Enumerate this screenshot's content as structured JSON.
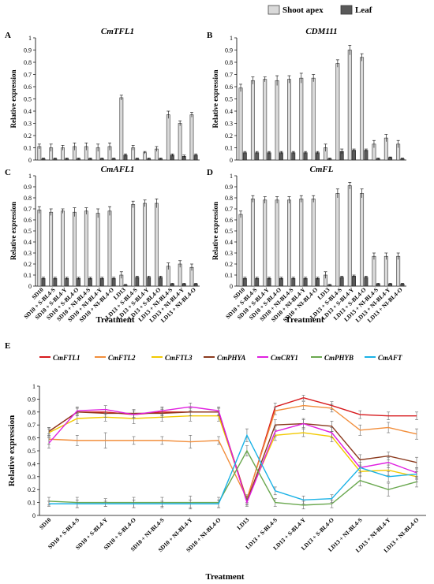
{
  "legend": {
    "shoot_apex": "Shoot apex",
    "leaf": "Leaf"
  },
  "treatments": [
    "SD10",
    "SD10 + S-BL4-S",
    "SD10 + S-BL4-Y",
    "SD10 + S-BL4-O",
    "SD10 + NI-BL4-S",
    "SD10 + NI-BL4-Y",
    "SD10 + NI-BL4-O",
    "LD13",
    "LD13 + S-BL4-S",
    "LD13 + S-BL4-Y",
    "LD13 + S-BL4-O",
    "LD13 + NI-BL4-S",
    "LD13 + NI-BL4-Y",
    "LD13 + NI-BL4-O"
  ],
  "bar_axis": {
    "xlabel": "Treatment",
    "ylabel": "Relative expression",
    "ylim": [
      0,
      1
    ],
    "ticks": [
      "0",
      "0.1",
      "0.2",
      "0.3",
      "0.4",
      "0.5",
      "0.6",
      "0.7",
      "0.8",
      "0.9",
      "1"
    ]
  },
  "colors": {
    "shoot_apex": "#d9d9d9",
    "leaf": "#595959"
  },
  "panels": [
    {
      "letter": "A",
      "title": "CmTFL1",
      "shoot": [
        0.11,
        0.1,
        0.1,
        0.11,
        0.11,
        0.1,
        0.11,
        0.51,
        0.1,
        0.06,
        0.09,
        0.37,
        0.3,
        0.37
      ],
      "shoot_err": [
        0.02,
        0.03,
        0.02,
        0.03,
        0.03,
        0.03,
        0.03,
        0.02,
        0.02,
        0.01,
        0.02,
        0.03,
        0.02,
        0.02
      ],
      "leaf": [
        0.01,
        0.01,
        0.01,
        0.01,
        0.01,
        0.01,
        0.01,
        0.04,
        0.01,
        0.01,
        0.01,
        0.04,
        0.03,
        0.04
      ],
      "leaf_err": [
        0.005,
        0.005,
        0.005,
        0.005,
        0.005,
        0.005,
        0.005,
        0.01,
        0.005,
        0.005,
        0.005,
        0.01,
        0.01,
        0.01
      ]
    },
    {
      "letter": "B",
      "title": "CDM111",
      "shoot": [
        0.59,
        0.65,
        0.66,
        0.65,
        0.66,
        0.67,
        0.67,
        0.1,
        0.79,
        0.9,
        0.84,
        0.13,
        0.18,
        0.13
      ],
      "shoot_err": [
        0.03,
        0.03,
        0.02,
        0.04,
        0.03,
        0.04,
        0.03,
        0.03,
        0.03,
        0.04,
        0.03,
        0.03,
        0.03,
        0.03
      ],
      "leaf": [
        0.06,
        0.06,
        0.06,
        0.06,
        0.06,
        0.06,
        0.06,
        0.01,
        0.07,
        0.08,
        0.08,
        0.01,
        0.02,
        0.01
      ],
      "leaf_err": [
        0.01,
        0.01,
        0.01,
        0.01,
        0.01,
        0.01,
        0.01,
        0.005,
        0.02,
        0.01,
        0.01,
        0.005,
        0.005,
        0.005
      ]
    },
    {
      "letter": "C",
      "title": "CmAFL1",
      "shoot": [
        0.69,
        0.67,
        0.68,
        0.67,
        0.68,
        0.66,
        0.68,
        0.1,
        0.74,
        0.75,
        0.75,
        0.18,
        0.2,
        0.17
      ],
      "shoot_err": [
        0.03,
        0.03,
        0.02,
        0.04,
        0.03,
        0.04,
        0.04,
        0.03,
        0.03,
        0.03,
        0.04,
        0.03,
        0.03,
        0.03
      ],
      "leaf": [
        0.07,
        0.07,
        0.07,
        0.07,
        0.07,
        0.07,
        0.07,
        0.01,
        0.08,
        0.08,
        0.08,
        0.02,
        0.02,
        0.02
      ],
      "leaf_err": [
        0.01,
        0.01,
        0.01,
        0.01,
        0.01,
        0.01,
        0.01,
        0.005,
        0.01,
        0.01,
        0.01,
        0.005,
        0.005,
        0.005
      ]
    },
    {
      "letter": "D",
      "title": "CmFL",
      "shoot": [
        0.65,
        0.79,
        0.78,
        0.78,
        0.78,
        0.79,
        0.79,
        0.1,
        0.84,
        0.91,
        0.84,
        0.27,
        0.27,
        0.27
      ],
      "shoot_err": [
        0.03,
        0.03,
        0.03,
        0.03,
        0.03,
        0.03,
        0.03,
        0.03,
        0.04,
        0.03,
        0.04,
        0.03,
        0.03,
        0.03
      ],
      "leaf": [
        0.07,
        0.07,
        0.07,
        0.07,
        0.07,
        0.07,
        0.07,
        0.01,
        0.08,
        0.09,
        0.08,
        0.02,
        0.02,
        0.02
      ],
      "leaf_err": [
        0.01,
        0.01,
        0.01,
        0.01,
        0.01,
        0.01,
        0.01,
        0.005,
        0.01,
        0.01,
        0.01,
        0.005,
        0.005,
        0.005
      ]
    }
  ],
  "chart_data": {
    "type": "line",
    "letter": "E",
    "categories": [
      "SD10",
      "SD10 + S-BL4-S",
      "SD10 + S-BL4-Y",
      "SD10 + S-BL4-O",
      "SD10 + NI-BL4-S",
      "SD10 + NI-BL4-Y",
      "SD10 + NI-BL4-O",
      "LD13",
      "LD13 + S-BL4-S",
      "LD13 + S-BL4-Y",
      "LD13 + S-BL4-O",
      "LD13 + NI-BL4-S",
      "LD13 + NI-BL4-Y",
      "LD13 + NI-BL4-O"
    ],
    "xlabel": "Treatment",
    "ylabel": "Relative expression",
    "ylim": [
      0,
      1
    ],
    "ticks": [
      "0",
      "0.1",
      "0.2",
      "0.3",
      "0.4",
      "0.5",
      "0.6",
      "0.7",
      "0.8",
      "0.9",
      "1"
    ],
    "legend_position": "top",
    "series": [
      {
        "name": "CmFTL1",
        "color": "#d7191c",
        "values": [
          0.65,
          0.8,
          0.8,
          0.78,
          0.8,
          0.8,
          0.8,
          0.12,
          0.84,
          0.91,
          0.85,
          0.78,
          0.77,
          0.77
        ],
        "err": [
          0.03,
          0.03,
          0.02,
          0.03,
          0.03,
          0.03,
          0.03,
          0.03,
          0.03,
          0.02,
          0.03,
          0.03,
          0.03,
          0.03
        ]
      },
      {
        "name": "CmFTL2",
        "color": "#f28e3b",
        "values": [
          0.59,
          0.58,
          0.58,
          0.58,
          0.58,
          0.57,
          0.58,
          0.13,
          0.81,
          0.85,
          0.83,
          0.66,
          0.68,
          0.63
        ],
        "err": [
          0.04,
          0.04,
          0.06,
          0.03,
          0.03,
          0.05,
          0.03,
          0.03,
          0.03,
          0.03,
          0.03,
          0.04,
          0.04,
          0.04
        ]
      },
      {
        "name": "CmFTL3",
        "color": "#f2c900",
        "values": [
          0.64,
          0.75,
          0.76,
          0.75,
          0.76,
          0.77,
          0.77,
          0.12,
          0.62,
          0.64,
          0.61,
          0.34,
          0.35,
          0.3
        ],
        "err": [
          0.03,
          0.04,
          0.03,
          0.04,
          0.03,
          0.04,
          0.04,
          0.03,
          0.04,
          0.03,
          0.04,
          0.04,
          0.04,
          0.04
        ]
      },
      {
        "name": "CmPHYA",
        "color": "#8b3a1e",
        "values": [
          0.65,
          0.8,
          0.79,
          0.79,
          0.79,
          0.8,
          0.8,
          0.11,
          0.7,
          0.71,
          0.69,
          0.43,
          0.46,
          0.41
        ],
        "err": [
          0.03,
          0.03,
          0.03,
          0.03,
          0.03,
          0.03,
          0.03,
          0.03,
          0.04,
          0.03,
          0.04,
          0.04,
          0.03,
          0.04
        ]
      },
      {
        "name": "CmCRY1",
        "color": "#e020e0",
        "values": [
          0.56,
          0.81,
          0.82,
          0.78,
          0.81,
          0.84,
          0.81,
          0.1,
          0.65,
          0.71,
          0.64,
          0.37,
          0.41,
          0.33
        ],
        "err": [
          0.04,
          0.03,
          0.03,
          0.03,
          0.03,
          0.03,
          0.03,
          0.03,
          0.04,
          0.04,
          0.04,
          0.04,
          0.04,
          0.04
        ]
      },
      {
        "name": "CmPHYB",
        "color": "#6aa84f",
        "values": [
          0.11,
          0.1,
          0.1,
          0.1,
          0.1,
          0.1,
          0.1,
          0.5,
          0.1,
          0.08,
          0.09,
          0.27,
          0.2,
          0.26
        ],
        "err": [
          0.03,
          0.04,
          0.03,
          0.04,
          0.04,
          0.05,
          0.04,
          0.04,
          0.03,
          0.03,
          0.03,
          0.04,
          0.05,
          0.04
        ]
      },
      {
        "name": "CmAFT",
        "color": "#1ab2e6",
        "values": [
          0.09,
          0.09,
          0.09,
          0.09,
          0.09,
          0.09,
          0.09,
          0.62,
          0.19,
          0.12,
          0.13,
          0.37,
          0.3,
          0.32
        ],
        "err": [
          0.02,
          0.03,
          0.02,
          0.03,
          0.02,
          0.03,
          0.03,
          0.05,
          0.03,
          0.03,
          0.03,
          0.04,
          0.04,
          0.04
        ]
      }
    ]
  }
}
